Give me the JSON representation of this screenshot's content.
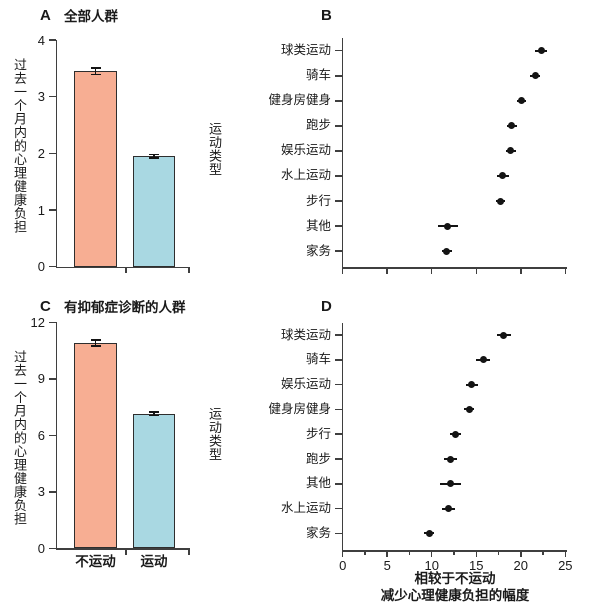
{
  "colors": {
    "bar_no_exercise": "#F7AE93",
    "bar_exercise": "#A9D8E2",
    "bar_outline": "#2e2e2e",
    "dot": "#141414",
    "axis": "#3f3f3f",
    "text": "#1a1a1a"
  },
  "chart_data": [
    {
      "id": "A",
      "type": "bar",
      "panel_label": "A",
      "title": "全部人群",
      "ylabel": "过去一个月内的心理健康负担",
      "categories": [
        "不运动",
        "运动"
      ],
      "values": [
        3.45,
        1.95
      ],
      "errors": [
        0.06,
        0.03
      ],
      "ylim": [
        0,
        4
      ],
      "yticks": [
        0,
        1,
        2,
        3,
        4
      ],
      "bar_colors": [
        "#F7AE93",
        "#A9D8E2"
      ],
      "x_category_labels_visible": false,
      "grid": false
    },
    {
      "id": "B",
      "type": "dot",
      "panel_label": "B",
      "ylabel": "运动类型",
      "categories": [
        "球类运动",
        "骑车",
        "健身房健身",
        "跑步",
        "娱乐运动",
        "水上运动",
        "步行",
        "其他",
        "家务"
      ],
      "values": [
        22.3,
        21.6,
        20.1,
        19.0,
        18.9,
        18.0,
        17.7,
        11.8,
        11.7
      ],
      "errors": [
        0.7,
        0.6,
        0.5,
        0.6,
        0.6,
        0.7,
        0.5,
        1.1,
        0.6
      ],
      "xlim": [
        0,
        25
      ],
      "xticks": [
        0,
        5,
        10,
        15,
        20,
        25
      ],
      "x_tick_labels_visible": false,
      "minor_ticks": false,
      "grid": false
    },
    {
      "id": "C",
      "type": "bar",
      "panel_label": "C",
      "title": "有抑郁症诊断的人群",
      "ylabel": "过去一个月内的心理健康负担",
      "categories": [
        "不运动",
        "运动"
      ],
      "values": [
        10.9,
        7.15
      ],
      "errors": [
        0.16,
        0.1
      ],
      "ylim": [
        0,
        12
      ],
      "yticks": [
        0,
        3,
        6,
        9,
        12
      ],
      "bar_colors": [
        "#F7AE93",
        "#A9D8E2"
      ],
      "x_category_labels_visible": true,
      "grid": false
    },
    {
      "id": "D",
      "type": "dot",
      "panel_label": "D",
      "ylabel": "运动类型",
      "xlabel_line1": "相较于不运动",
      "xlabel_line2": "减少心理健康负担的幅度",
      "categories": [
        "球类运动",
        "骑车",
        "娱乐运动",
        "健身房健身",
        "步行",
        "跑步",
        "其他",
        "水上运动",
        "家务"
      ],
      "values": [
        18.1,
        15.8,
        14.5,
        14.2,
        12.7,
        12.1,
        12.1,
        11.9,
        9.7
      ],
      "errors": [
        0.8,
        0.8,
        0.7,
        0.6,
        0.6,
        0.7,
        1.2,
        0.7,
        0.6
      ],
      "xlim": [
        0,
        25
      ],
      "xticks": [
        0,
        5,
        10,
        15,
        20,
        25
      ],
      "x_tick_labels_visible": true,
      "minor_ticks": true,
      "grid": false
    }
  ]
}
